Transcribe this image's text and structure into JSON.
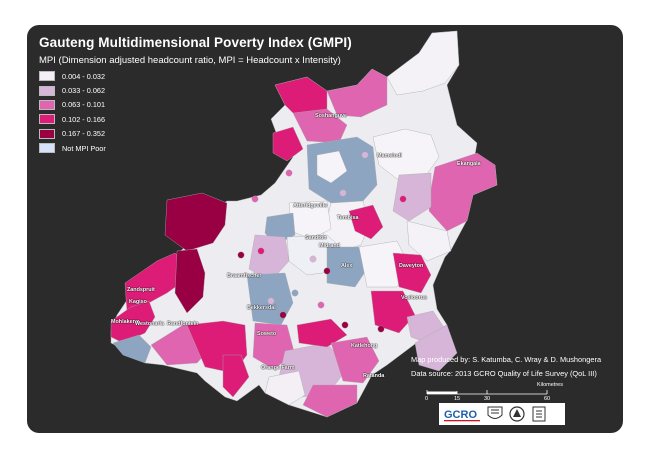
{
  "map": {
    "title": "Gauteng Multidimensional Poverty Index (GMPI)",
    "subtitle": "MPI (Dimension adjusted headcount ratio, MPI = Headcount x Intensity)",
    "legend": [
      {
        "label": "0.004 - 0.032",
        "color": "#f3eff4"
      },
      {
        "label": "0.033 - 0.062",
        "color": "#d7b5d8"
      },
      {
        "label": "0.063 - 0.101",
        "color": "#df65b0"
      },
      {
        "label": "0.102 - 0.166",
        "color": "#dd1c77"
      },
      {
        "label": "0.167 - 0.352",
        "color": "#980043"
      },
      {
        "label": "Not MPI Poor",
        "color": "#d5e2f7"
      }
    ],
    "places": [
      "Soshanguve",
      "Mamelodi",
      "Ekangala",
      "Atteridgeville",
      "Tembisa",
      "Midrand",
      "Alex",
      "Sandton",
      "Daveyton",
      "Zandspruit",
      "Kagiso",
      "Mohlakeng",
      "Randfontein",
      "Bekkersdal",
      "Soweto",
      "Orange Farm",
      "Katlehong",
      "Ratanda",
      "Vosloorus",
      "Westonaria",
      "Braamfischer"
    ],
    "credits": {
      "produced_by": "Map produced by: S. Katumba, C. Wray & D. Mushongera",
      "data_source": "Data source: 2013  GCRO Quality of Life Survey (QoL III)"
    },
    "scale": {
      "unit": "Kilometres",
      "ticks": [
        "0",
        "15",
        "30",
        "60"
      ]
    },
    "logos": [
      "gcro-logo",
      "university-crest-logo",
      "gauteng-province-logo",
      "johannesburg-logo"
    ],
    "logo_text": {
      "gcro": "GCRO"
    }
  }
}
